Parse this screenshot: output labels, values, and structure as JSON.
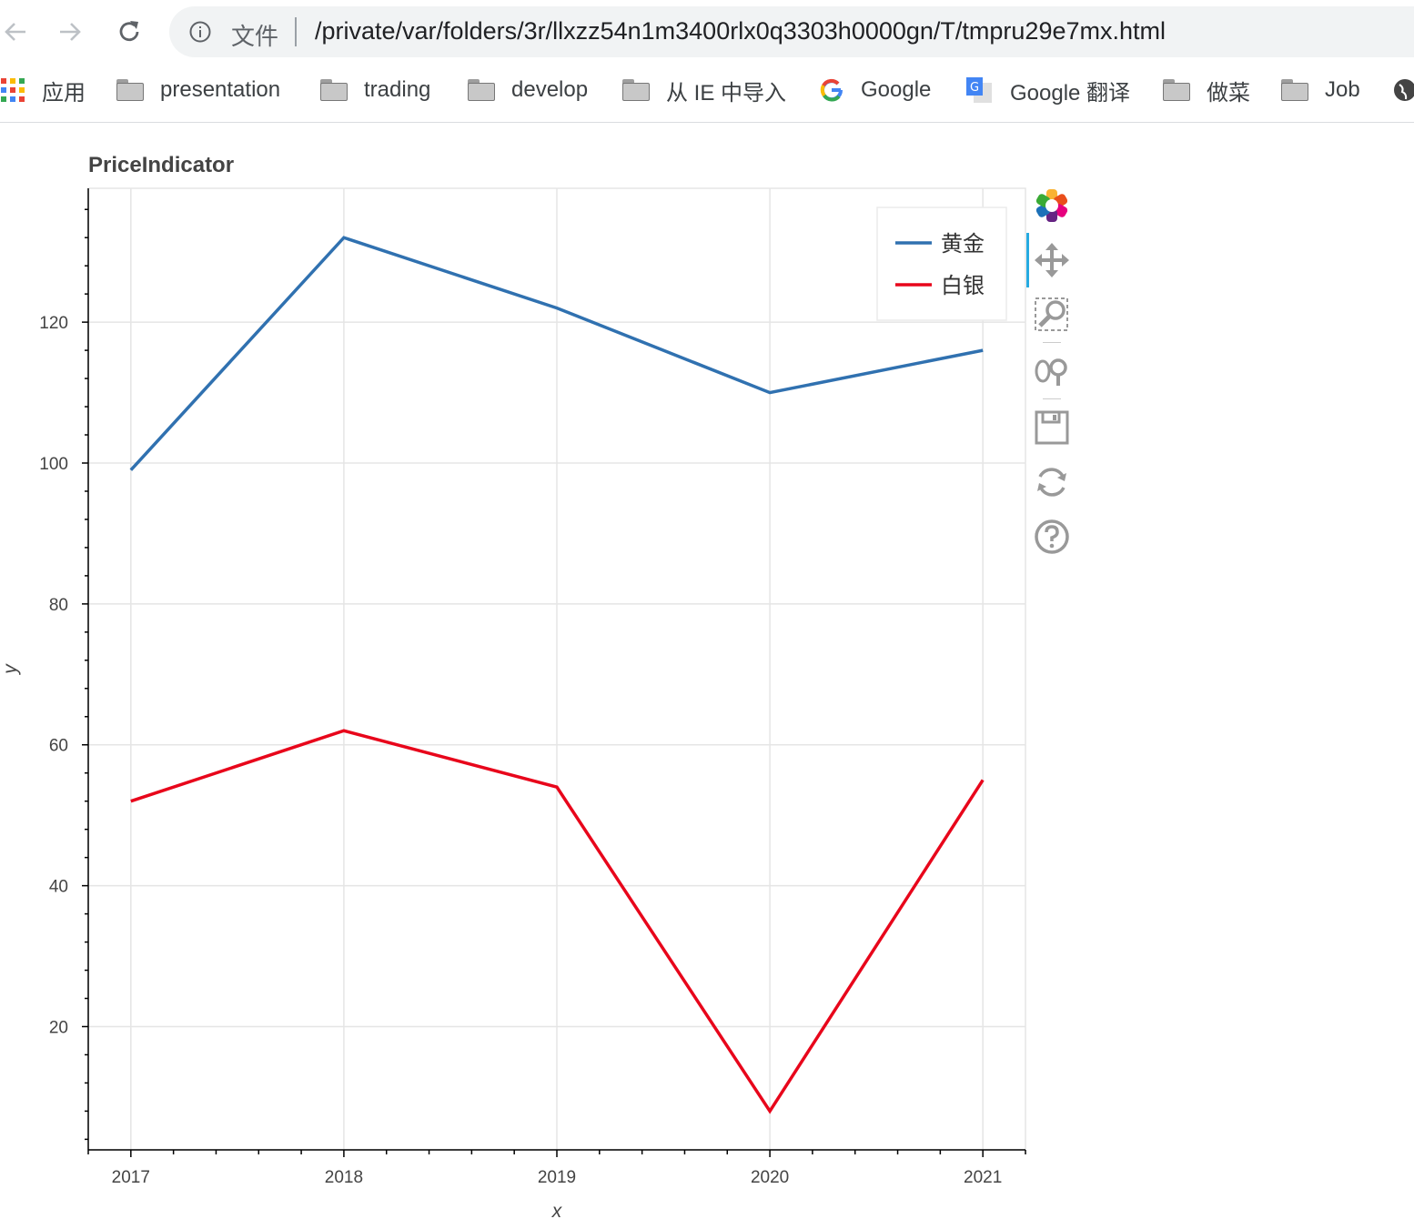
{
  "browser": {
    "url_scheme_label": "文件",
    "url": "/private/var/folders/3r/llxzz54n1m3400rlx0q3303h0000gn/T/tmpru29e7mx.html"
  },
  "bookmarks": [
    {
      "label": "应用",
      "icon": "apps-grid-icon"
    },
    {
      "label": "presentation",
      "icon": "folder-icon"
    },
    {
      "label": "trading",
      "icon": "folder-icon"
    },
    {
      "label": "develop",
      "icon": "folder-icon"
    },
    {
      "label": "从 IE 中导入",
      "icon": "folder-icon"
    },
    {
      "label": "Google",
      "icon": "google-icon"
    },
    {
      "label": "Google 翻译",
      "icon": "google-translate-icon"
    },
    {
      "label": "做菜",
      "icon": "folder-icon"
    },
    {
      "label": "Job",
      "icon": "folder-icon"
    }
  ],
  "tools": [
    "bokeh-logo-icon",
    "pan-icon",
    "box-zoom-icon",
    "wheel-zoom-icon",
    "save-icon",
    "reset-icon",
    "help-icon"
  ],
  "chart_data": {
    "type": "line",
    "title": "PriceIndicator",
    "xlabel": "x",
    "ylabel": "y",
    "x": [
      2017,
      2018,
      2019,
      2020,
      2021
    ],
    "xticks": [
      2017,
      2018,
      2019,
      2020,
      2021
    ],
    "yticks": [
      20,
      40,
      60,
      80,
      100,
      120
    ],
    "xlim": [
      2016.8,
      2021.2
    ],
    "ylim": [
      2.5,
      139
    ],
    "grid": true,
    "legend_position": "top-right",
    "series": [
      {
        "name": "黄金",
        "color": "#3071b0",
        "values": [
          99,
          132,
          122,
          110,
          116
        ]
      },
      {
        "name": "白银",
        "color": "#e8061b",
        "values": [
          52,
          62,
          54,
          8,
          55
        ]
      }
    ]
  }
}
